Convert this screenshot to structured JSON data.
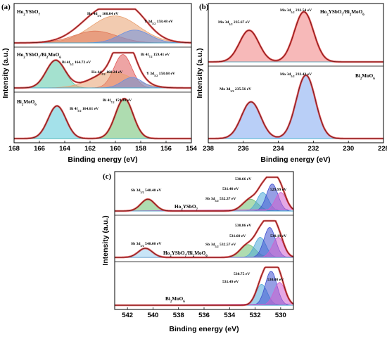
{
  "figure": {
    "panels": [
      {
        "id": "a",
        "label": "(a)",
        "xlabel": "Binding energy (eV)",
        "ylabel": "Intensity (a.u.)",
        "color": "#4a7fd6"
      },
      {
        "id": "b",
        "label": "(b)",
        "xlabel": "Binding energy (eV)",
        "ylabel": "Intensity (a.u.)",
        "color": "#3f7fe0"
      },
      {
        "id": "c",
        "label": "(c)",
        "xlabel": "Binding energy (eV)",
        "ylabel": "Intensity (a.u.)",
        "color": "#3d3dd6"
      }
    ]
  },
  "chart_data": [
    {
      "panel": "a",
      "type": "line",
      "xlim": [
        168,
        154
      ],
      "xticks": [
        168,
        166,
        164,
        162,
        160,
        158,
        156,
        154
      ],
      "xlabel": "Binding energy (eV)",
      "ylabel": "Intensity (a.u.)",
      "subplots": [
        {
          "sample": "Ho2YSbO7",
          "annotations": [
            "Ho 4d5/2 160.04 eV",
            "Y 3d5/2 158.48 eV"
          ],
          "peaks": [
            {
              "center": 160.04,
              "height": 0.8,
              "width": 1.9,
              "color": "#e8a070"
            },
            {
              "center": 161.6,
              "height": 0.35,
              "width": 1.7,
              "color": "#e07a5a"
            },
            {
              "center": 158.48,
              "height": 0.38,
              "width": 1.2,
              "color": "#6a8fe0"
            }
          ]
        },
        {
          "sample": "Ho2YSbO7/Bi2MoO6",
          "annotations": [
            "Bi 4f5/2 164.72 eV",
            "Bi 4f7/2 159.41 eV",
            "Ho 4d5/2 160.24 eV",
            "Y 3d5/2 158.68 eV"
          ],
          "peaks": [
            {
              "center": 164.72,
              "height": 0.78,
              "width": 0.75,
              "color": "#5ac8a8"
            },
            {
              "center": 159.41,
              "height": 0.95,
              "width": 0.7,
              "color": "#e05a5a"
            },
            {
              "center": 160.24,
              "height": 0.45,
              "width": 1.6,
              "color": "#e8a070"
            },
            {
              "center": 158.68,
              "height": 0.3,
              "width": 0.8,
              "color": "#6a8fe0"
            }
          ]
        },
        {
          "sample": "Bi2MoO6",
          "annotations": [
            "Bi 4f7/2 159.30 eV",
            "Bi 4f5/2 164.61 eV"
          ],
          "peaks": [
            {
              "center": 164.61,
              "height": 0.8,
              "width": 0.7,
              "color": "#5ac8d8"
            },
            {
              "center": 159.3,
              "height": 0.98,
              "width": 0.7,
              "color": "#6cc070"
            }
          ]
        }
      ]
    },
    {
      "panel": "b",
      "type": "line",
      "xlim": [
        238,
        228
      ],
      "xticks": [
        238,
        236,
        234,
        232,
        230,
        228
      ],
      "xlabel": "Binding energy (eV)",
      "ylabel": "Intensity (a.u.)",
      "subplots": [
        {
          "sample": "Ho2YSbO7/Bi2MoO6",
          "annotations": [
            "Mo 3d3/2 235.67 eV",
            "Mo 3d5/2 232.54 eV"
          ],
          "peaks": [
            {
              "center": 235.67,
              "height": 0.6,
              "width": 0.55,
              "color": "#f08080"
            },
            {
              "center": 232.54,
              "height": 0.95,
              "width": 0.55,
              "color": "#f08080"
            }
          ]
        },
        {
          "sample": "Bi2MoO6",
          "annotations": [
            "Mo 3d3/2 235.56 eV",
            "Mo 3d5/2 232.43 eV"
          ],
          "peaks": [
            {
              "center": 235.56,
              "height": 0.55,
              "width": 0.55,
              "color": "#80a8f0"
            },
            {
              "center": 232.43,
              "height": 0.95,
              "width": 0.55,
              "color": "#80a8f0"
            }
          ]
        }
      ]
    },
    {
      "panel": "c",
      "type": "line",
      "xlim": [
        543,
        529
      ],
      "xticks": [
        542,
        540,
        538,
        536,
        534,
        532,
        530
      ],
      "xlabel": "Binding energy (eV)",
      "ylabel": "Intensity (a.u.)",
      "subplots": [
        {
          "sample": "Ho2YSbO7",
          "annotations": [
            "Sb 3d3/2 540.40 eV",
            "530.66 eV",
            "531.40 eV",
            "Sb 3d5/2 532.37 eV",
            "529.99 eV"
          ],
          "peaks": [
            {
              "center": 540.4,
              "height": 0.35,
              "width": 0.55,
              "color": "#6cc070"
            },
            {
              "center": 532.37,
              "height": 0.35,
              "width": 0.6,
              "color": "#6cc070"
            },
            {
              "center": 531.4,
              "height": 0.55,
              "width": 0.45,
              "color": "#4fa8d8"
            },
            {
              "center": 530.66,
              "height": 0.8,
              "width": 0.45,
              "color": "#4050d0"
            },
            {
              "center": 529.99,
              "height": 0.55,
              "width": 0.45,
              "color": "#d060d0"
            }
          ]
        },
        {
          "sample": "Ho2YSbO7/Bi2MoO6",
          "annotations": [
            "Sb 3d3/2 540.60 eV",
            "530.86 eV",
            "531.60 eV",
            "Sb 3d5/2 532.57 eV",
            "530.19 eV"
          ],
          "peaks": [
            {
              "center": 540.6,
              "height": 0.25,
              "width": 0.55,
              "color": "#9ad0f0"
            },
            {
              "center": 532.57,
              "height": 0.35,
              "width": 0.6,
              "color": "#6cc070"
            },
            {
              "center": 531.6,
              "height": 0.55,
              "width": 0.45,
              "color": "#4fa8d8"
            },
            {
              "center": 530.86,
              "height": 0.82,
              "width": 0.45,
              "color": "#4050d0"
            },
            {
              "center": 530.19,
              "height": 0.55,
              "width": 0.45,
              "color": "#d060d0"
            }
          ]
        },
        {
          "sample": "Bi2MoO6",
          "annotations": [
            "530.75 eV",
            "531.49 eV",
            "530.08 eV"
          ],
          "peaks": [
            {
              "center": 531.49,
              "height": 0.55,
              "width": 0.45,
              "color": "#4fa8d8"
            },
            {
              "center": 530.75,
              "height": 0.9,
              "width": 0.45,
              "color": "#4050d0"
            },
            {
              "center": 530.08,
              "height": 0.6,
              "width": 0.45,
              "color": "#d060d0"
            }
          ]
        }
      ]
    }
  ]
}
